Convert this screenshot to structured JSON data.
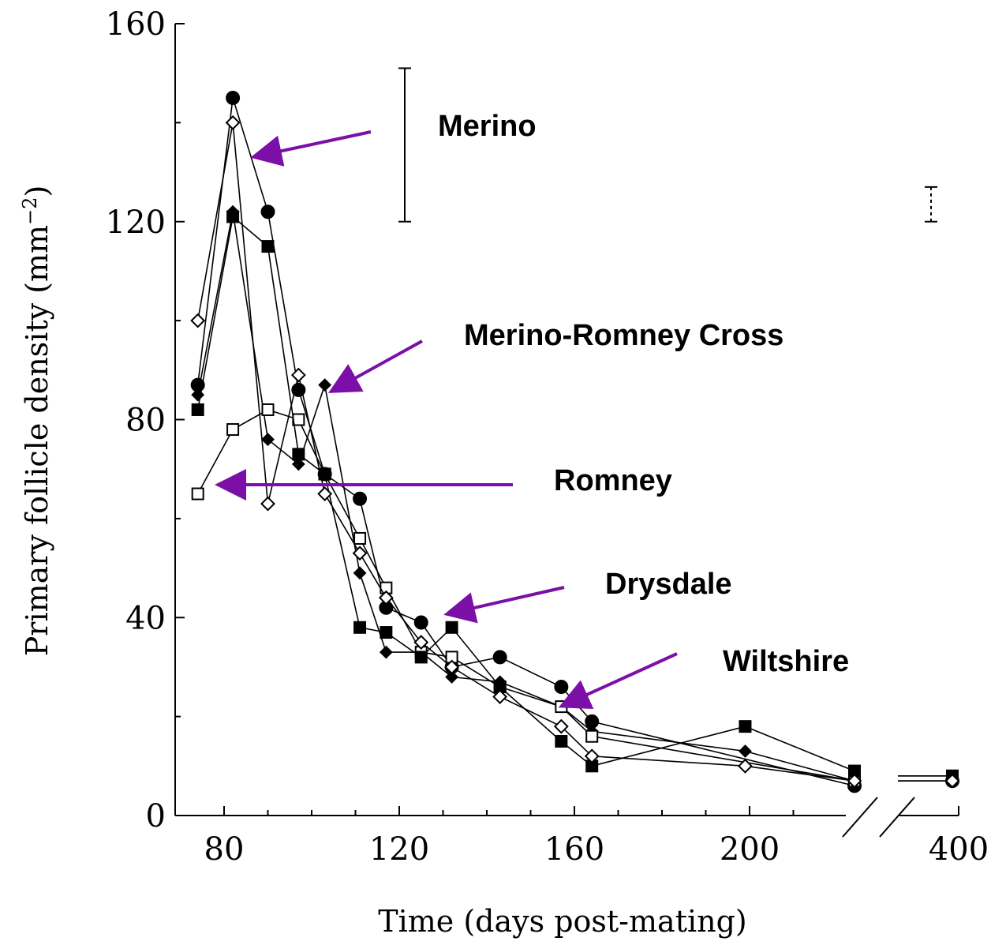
{
  "chart_data": {
    "type": "line",
    "xlabel": "Time (days post-mating)",
    "ylabel": "Primary follicle density (mm",
    "ylabel_sup": "−2",
    "ylabel_close": ")",
    "ylim": [
      0,
      160
    ],
    "y_ticks": [
      0,
      40,
      80,
      120,
      160
    ],
    "x_ticks": [
      80,
      120,
      160,
      200
    ],
    "x_tick_labels": [
      "80",
      "120",
      "160",
      "200"
    ],
    "x_break_label": "400",
    "x_break": true,
    "legend_labels": [
      {
        "text": "Merino",
        "target_series": "Merino"
      },
      {
        "text": "Merino-Romney Cross",
        "target_series": "Merino-Romney Cross"
      },
      {
        "text": "Romney",
        "target_series": "Romney"
      },
      {
        "text": "Drysdale",
        "target_series": "Drysdale"
      },
      {
        "text": "Wiltshire",
        "target_series": "Wiltshire"
      }
    ],
    "error_bars": [
      {
        "x": 125,
        "low": 120,
        "high": 151,
        "style": "solid"
      },
      {
        "x": 400,
        "low": 120,
        "high": 127,
        "style": "dashed"
      }
    ],
    "series": [
      {
        "name": "Merino",
        "marker": "filled-circle",
        "points": [
          [
            74,
            87
          ],
          [
            82,
            145
          ],
          [
            90,
            122
          ],
          [
            97,
            86
          ],
          [
            103,
            69
          ],
          [
            111,
            64
          ],
          [
            117,
            42
          ],
          [
            125,
            39
          ],
          [
            132,
            30
          ],
          [
            143,
            32
          ],
          [
            157,
            26
          ],
          [
            164,
            19
          ],
          [
            238,
            6
          ],
          [
            400,
            7
          ]
        ]
      },
      {
        "name": "Merino-Romney Cross",
        "marker": "filled-diamond",
        "points": [
          [
            74,
            85
          ],
          [
            82,
            122
          ],
          [
            90,
            76
          ],
          [
            97,
            71
          ],
          [
            103,
            87
          ],
          [
            111,
            49
          ],
          [
            117,
            33
          ],
          [
            125,
            33
          ],
          [
            132,
            28
          ],
          [
            143,
            27
          ],
          [
            157,
            22
          ],
          [
            164,
            17
          ],
          [
            199,
            13
          ],
          [
            238,
            7
          ],
          [
            400,
            7
          ]
        ]
      },
      {
        "name": "Romney",
        "marker": "open-square",
        "points": [
          [
            74,
            65
          ],
          [
            82,
            78
          ],
          [
            90,
            82
          ],
          [
            97,
            80
          ],
          [
            103,
            69
          ],
          [
            111,
            56
          ],
          [
            117,
            46
          ],
          [
            125,
            33
          ],
          [
            132,
            32
          ],
          [
            143,
            26
          ],
          [
            157,
            22
          ],
          [
            164,
            16
          ],
          [
            238,
            7
          ],
          [
            400,
            8
          ]
        ]
      },
      {
        "name": "Drysdale",
        "marker": "filled-square",
        "points": [
          [
            74,
            82
          ],
          [
            82,
            121
          ],
          [
            90,
            115
          ],
          [
            97,
            73
          ],
          [
            103,
            69
          ],
          [
            111,
            38
          ],
          [
            117,
            37
          ],
          [
            125,
            32
          ],
          [
            132,
            38
          ],
          [
            143,
            26
          ],
          [
            157,
            15
          ],
          [
            164,
            10
          ],
          [
            199,
            18
          ],
          [
            238,
            9
          ],
          [
            400,
            8
          ]
        ]
      },
      {
        "name": "Wiltshire",
        "marker": "open-diamond",
        "points": [
          [
            74,
            100
          ],
          [
            82,
            140
          ],
          [
            90,
            63
          ],
          [
            97,
            89
          ],
          [
            103,
            65
          ],
          [
            111,
            53
          ],
          [
            117,
            44
          ],
          [
            125,
            35
          ],
          [
            132,
            30
          ],
          [
            143,
            24
          ],
          [
            157,
            18
          ],
          [
            164,
            12
          ],
          [
            199,
            10
          ],
          [
            238,
            7
          ],
          [
            400,
            7
          ]
        ]
      }
    ],
    "colors": {
      "axis": "#000000",
      "arrow": "#7b0fa8",
      "line": "#000000"
    }
  }
}
